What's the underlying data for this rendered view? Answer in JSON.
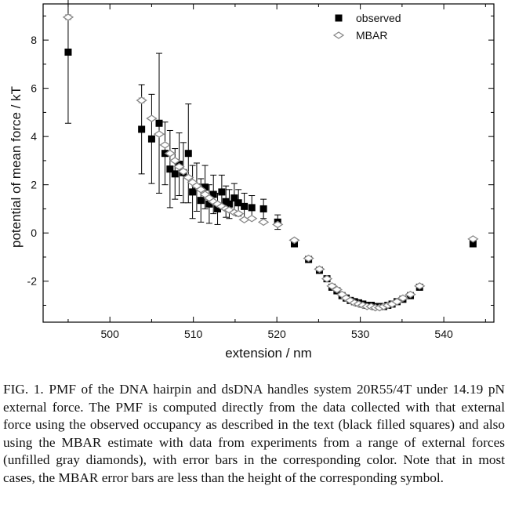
{
  "chart_data": {
    "type": "scatter",
    "xlabel": "extension / nm",
    "ylabel": "potential of mean force / kT",
    "xlim": [
      492,
      546
    ],
    "ylim": [
      -3.7,
      9.5
    ],
    "xticks": [
      500,
      510,
      520,
      530,
      540
    ],
    "yticks": [
      -2,
      0,
      2,
      4,
      6,
      8
    ],
    "grid": false,
    "legend": "top-right",
    "series": [
      {
        "name": "observed",
        "marker": "filled-square",
        "color": "#000000",
        "points": [
          {
            "x": 495.0,
            "y": 7.5,
            "err": 2.95
          },
          {
            "x": 503.8,
            "y": 4.3,
            "err": 1.85
          },
          {
            "x": 505.0,
            "y": 3.9,
            "err": 1.85
          },
          {
            "x": 505.9,
            "y": 4.55,
            "err": 2.9
          },
          {
            "x": 506.6,
            "y": 3.3,
            "err": 1.3
          },
          {
            "x": 507.2,
            "y": 2.65,
            "err": 1.6
          },
          {
            "x": 507.8,
            "y": 2.45,
            "err": 1.05
          },
          {
            "x": 508.3,
            "y": 2.85,
            "err": 1.3
          },
          {
            "x": 508.8,
            "y": 2.5,
            "err": 1.25
          },
          {
            "x": 509.4,
            "y": 3.3,
            "err": 2.05
          },
          {
            "x": 509.9,
            "y": 1.7,
            "err": 1.1
          },
          {
            "x": 510.4,
            "y": 1.9,
            "err": 1.0
          },
          {
            "x": 510.9,
            "y": 1.35,
            "err": 0.9
          },
          {
            "x": 511.4,
            "y": 1.9,
            "err": 0.9
          },
          {
            "x": 511.9,
            "y": 1.2,
            "err": 0.8
          },
          {
            "x": 512.4,
            "y": 1.6,
            "err": 0.8
          },
          {
            "x": 512.9,
            "y": 1.0,
            "err": 0.65
          },
          {
            "x": 513.4,
            "y": 1.7,
            "err": 0.7
          },
          {
            "x": 513.9,
            "y": 1.3,
            "err": 0.65
          },
          {
            "x": 514.3,
            "y": 1.2,
            "err": 0.6
          },
          {
            "x": 514.9,
            "y": 1.45,
            "err": 0.6
          },
          {
            "x": 515.4,
            "y": 1.25,
            "err": 0.55
          },
          {
            "x": 516.1,
            "y": 1.1,
            "err": 0.55
          },
          {
            "x": 517.0,
            "y": 1.05,
            "err": 0.5
          },
          {
            "x": 518.4,
            "y": 1.0,
            "err": 0.4
          },
          {
            "x": 520.1,
            "y": 0.45,
            "err": 0.3
          },
          {
            "x": 522.1,
            "y": -0.45,
            "err": 0.12
          },
          {
            "x": 523.8,
            "y": -1.1,
            "err": 0.1
          },
          {
            "x": 525.1,
            "y": -1.55,
            "err": 0.08
          },
          {
            "x": 526.0,
            "y": -1.9,
            "err": 0.08
          },
          {
            "x": 526.6,
            "y": -2.25,
            "err": 0.07
          },
          {
            "x": 527.2,
            "y": -2.4,
            "err": 0.07
          },
          {
            "x": 527.8,
            "y": -2.6,
            "err": 0.07
          },
          {
            "x": 528.3,
            "y": -2.7,
            "err": 0.06
          },
          {
            "x": 528.8,
            "y": -2.8,
            "err": 0.06
          },
          {
            "x": 529.3,
            "y": -2.85,
            "err": 0.06
          },
          {
            "x": 529.8,
            "y": -2.9,
            "err": 0.06
          },
          {
            "x": 530.3,
            "y": -2.95,
            "err": 0.06
          },
          {
            "x": 530.8,
            "y": -3.0,
            "err": 0.06
          },
          {
            "x": 531.3,
            "y": -3.0,
            "err": 0.06
          },
          {
            "x": 531.8,
            "y": -3.05,
            "err": 0.06
          },
          {
            "x": 532.3,
            "y": -3.05,
            "err": 0.06
          },
          {
            "x": 532.8,
            "y": -3.05,
            "err": 0.06
          },
          {
            "x": 533.3,
            "y": -3.0,
            "err": 0.06
          },
          {
            "x": 533.8,
            "y": -2.95,
            "err": 0.06
          },
          {
            "x": 534.4,
            "y": -2.85,
            "err": 0.06
          },
          {
            "x": 535.1,
            "y": -2.75,
            "err": 0.07
          },
          {
            "x": 536.0,
            "y": -2.6,
            "err": 0.07
          },
          {
            "x": 537.1,
            "y": -2.25,
            "err": 0.08
          },
          {
            "x": 543.5,
            "y": -0.45,
            "err": 0.1
          }
        ]
      },
      {
        "name": "MBAR",
        "marker": "open-diamond",
        "color": "#888888",
        "points": [
          {
            "x": 495.0,
            "y": 8.95,
            "err": 0.1
          },
          {
            "x": 503.8,
            "y": 5.5,
            "err": 0.1
          },
          {
            "x": 505.0,
            "y": 4.75,
            "err": 0.08
          },
          {
            "x": 505.9,
            "y": 4.1,
            "err": 0.08
          },
          {
            "x": 506.6,
            "y": 3.65,
            "err": 0.08
          },
          {
            "x": 507.2,
            "y": 3.3,
            "err": 0.07
          },
          {
            "x": 507.8,
            "y": 3.0,
            "err": 0.07
          },
          {
            "x": 508.3,
            "y": 2.75,
            "err": 0.07
          },
          {
            "x": 508.8,
            "y": 2.55,
            "err": 0.07
          },
          {
            "x": 509.4,
            "y": 2.3,
            "err": 0.06
          },
          {
            "x": 509.9,
            "y": 2.1,
            "err": 0.06
          },
          {
            "x": 510.4,
            "y": 1.95,
            "err": 0.06
          },
          {
            "x": 510.9,
            "y": 1.8,
            "err": 0.06
          },
          {
            "x": 511.4,
            "y": 1.6,
            "err": 0.06
          },
          {
            "x": 511.9,
            "y": 1.45,
            "err": 0.05
          },
          {
            "x": 512.4,
            "y": 1.3,
            "err": 0.05
          },
          {
            "x": 512.9,
            "y": 1.2,
            "err": 0.05
          },
          {
            "x": 513.4,
            "y": 1.1,
            "err": 0.05
          },
          {
            "x": 513.9,
            "y": 1.0,
            "err": 0.05
          },
          {
            "x": 514.3,
            "y": 0.95,
            "err": 0.05
          },
          {
            "x": 514.9,
            "y": 0.85,
            "err": 0.05
          },
          {
            "x": 515.4,
            "y": 0.8,
            "err": 0.05
          },
          {
            "x": 516.1,
            "y": 0.55,
            "err": 0.05
          },
          {
            "x": 517.0,
            "y": 0.6,
            "err": 0.05
          },
          {
            "x": 518.4,
            "y": 0.45,
            "err": 0.05
          },
          {
            "x": 520.1,
            "y": 0.35,
            "err": 0.05
          },
          {
            "x": 522.1,
            "y": -0.3,
            "err": 0.05
          },
          {
            "x": 523.8,
            "y": -1.05,
            "err": 0.05
          },
          {
            "x": 525.1,
            "y": -1.5,
            "err": 0.05
          },
          {
            "x": 526.0,
            "y": -1.9,
            "err": 0.05
          },
          {
            "x": 526.6,
            "y": -2.2,
            "err": 0.05
          },
          {
            "x": 527.2,
            "y": -2.35,
            "err": 0.05
          },
          {
            "x": 527.8,
            "y": -2.55,
            "err": 0.05
          },
          {
            "x": 528.3,
            "y": -2.7,
            "err": 0.05
          },
          {
            "x": 528.8,
            "y": -2.8,
            "err": 0.05
          },
          {
            "x": 529.3,
            "y": -2.9,
            "err": 0.05
          },
          {
            "x": 529.8,
            "y": -2.95,
            "err": 0.05
          },
          {
            "x": 530.3,
            "y": -3.0,
            "err": 0.05
          },
          {
            "x": 530.8,
            "y": -3.05,
            "err": 0.05
          },
          {
            "x": 531.3,
            "y": -3.05,
            "err": 0.05
          },
          {
            "x": 531.8,
            "y": -3.1,
            "err": 0.05
          },
          {
            "x": 532.3,
            "y": -3.1,
            "err": 0.05
          },
          {
            "x": 532.8,
            "y": -3.05,
            "err": 0.05
          },
          {
            "x": 533.3,
            "y": -3.0,
            "err": 0.05
          },
          {
            "x": 533.8,
            "y": -2.95,
            "err": 0.05
          },
          {
            "x": 534.4,
            "y": -2.85,
            "err": 0.05
          },
          {
            "x": 535.1,
            "y": -2.7,
            "err": 0.05
          },
          {
            "x": 536.0,
            "y": -2.55,
            "err": 0.05
          },
          {
            "x": 537.1,
            "y": -2.2,
            "err": 0.05
          },
          {
            "x": 543.5,
            "y": -0.25,
            "err": 0.05
          }
        ]
      }
    ]
  },
  "caption": "FIG. 1. PMF of the DNA hairpin and dsDNA handles system 20R55/4T under 14.19 pN external force. The PMF is computed directly from the data collected with that external force using the observed occupancy as described in the text (black filled squares) and also using the MBAR estimate with data from experiments from a range of external forces (unfilled gray diamonds), with error bars in the corresponding color. Note that in most cases, the MBAR error bars are less than the height of the corresponding symbol."
}
